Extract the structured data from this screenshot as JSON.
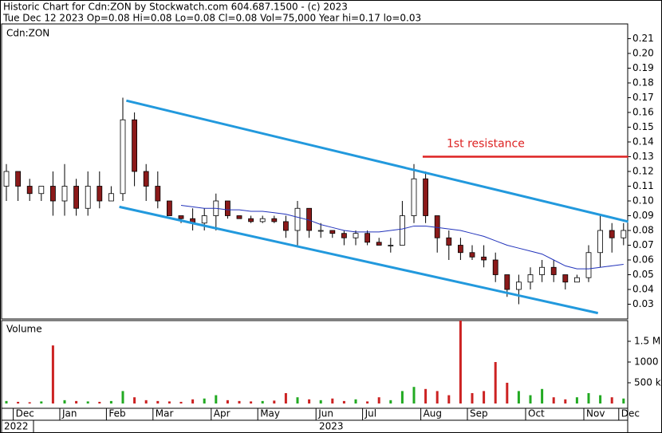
{
  "chart_data": {
    "type": "candlestick",
    "title": "Historic Chart for Cdn:ZON by Stockwatch.com 604.687.1500 - (c) 2023",
    "subtitle": "Tue Dec 12 2023  Op=0.08  Hi=0.08  Lo=0.08  Cl=0.08  Vol=75,000  Year hi=0.17  lo=0.03",
    "symbol_label": "Cdn:ZON",
    "volume_label": "Volume",
    "years": [
      "2022",
      "2023"
    ],
    "categories": [
      null,
      "Dec",
      null,
      null,
      null,
      "Jan",
      null,
      null,
      null,
      "Feb",
      null,
      null,
      null,
      "Mar",
      null,
      null,
      null,
      null,
      "Apr",
      null,
      null,
      null,
      "May",
      null,
      null,
      null,
      null,
      "Jun",
      null,
      null,
      null,
      "Jul",
      null,
      null,
      null,
      null,
      "Aug",
      null,
      null,
      null,
      "Sep",
      null,
      null,
      null,
      null,
      "Oct",
      null,
      null,
      null,
      null,
      "Nov",
      null,
      null,
      "Dec"
    ],
    "open": [
      0.11,
      0.12,
      0.11,
      0.105,
      0.11,
      0.1,
      0.11,
      0.095,
      0.11,
      0.1,
      0.105,
      0.155,
      0.12,
      0.11,
      0.1,
      0.09,
      0.088,
      0.085,
      0.09,
      0.1,
      0.09,
      0.088,
      0.086,
      0.088,
      0.086,
      0.08,
      0.095,
      0.08,
      0.08,
      0.078,
      0.075,
      0.078,
      0.072,
      0.07,
      0.07,
      0.09,
      0.115,
      0.09,
      0.075,
      0.07,
      0.065,
      0.062,
      0.06,
      0.05,
      0.04,
      0.045,
      0.05,
      0.055,
      0.05,
      0.045,
      0.048,
      0.065,
      0.08,
      0.075
    ],
    "high": [
      0.125,
      0.12,
      0.115,
      0.11,
      0.12,
      0.125,
      0.115,
      0.12,
      0.12,
      0.11,
      0.17,
      0.16,
      0.125,
      0.12,
      0.1,
      0.09,
      0.095,
      0.095,
      0.105,
      0.1,
      0.09,
      0.09,
      0.09,
      0.09,
      0.09,
      0.1,
      0.095,
      0.085,
      0.08,
      0.08,
      0.08,
      0.08,
      0.075,
      0.075,
      0.1,
      0.125,
      0.12,
      0.09,
      0.08,
      0.075,
      0.07,
      0.07,
      0.065,
      0.05,
      0.05,
      0.055,
      0.06,
      0.06,
      0.05,
      0.05,
      0.07,
      0.09,
      0.085,
      0.085
    ],
    "low": [
      0.1,
      0.1,
      0.1,
      0.1,
      0.09,
      0.09,
      0.09,
      0.09,
      0.095,
      0.1,
      0.1,
      0.11,
      0.1,
      0.095,
      0.09,
      0.085,
      0.08,
      0.08,
      0.08,
      0.088,
      0.088,
      0.085,
      0.085,
      0.085,
      0.075,
      0.07,
      0.075,
      0.075,
      0.075,
      0.07,
      0.07,
      0.07,
      0.07,
      0.065,
      0.07,
      0.085,
      0.085,
      0.065,
      0.06,
      0.06,
      0.06,
      0.055,
      0.045,
      0.035,
      0.03,
      0.04,
      0.045,
      0.045,
      0.04,
      0.045,
      0.045,
      0.055,
      0.065,
      0.07
    ],
    "close": [
      0.12,
      0.11,
      0.105,
      0.11,
      0.1,
      0.11,
      0.095,
      0.11,
      0.1,
      0.105,
      0.155,
      0.12,
      0.11,
      0.1,
      0.09,
      0.088,
      0.085,
      0.09,
      0.1,
      0.09,
      0.088,
      0.086,
      0.088,
      0.086,
      0.08,
      0.095,
      0.08,
      0.08,
      0.078,
      0.075,
      0.078,
      0.072,
      0.07,
      0.07,
      0.09,
      0.115,
      0.09,
      0.075,
      0.07,
      0.065,
      0.062,
      0.06,
      0.05,
      0.04,
      0.045,
      0.05,
      0.055,
      0.05,
      0.045,
      0.048,
      0.065,
      0.08,
      0.075,
      0.08
    ],
    "moving_average": {
      "color": "#2233bb",
      "values": [
        null,
        null,
        null,
        null,
        null,
        null,
        null,
        null,
        null,
        null,
        null,
        null,
        null,
        null,
        null,
        0.097,
        0.096,
        0.095,
        0.095,
        0.094,
        0.094,
        0.093,
        0.093,
        0.092,
        0.091,
        0.089,
        0.087,
        0.084,
        0.082,
        0.08,
        0.079,
        0.079,
        0.079,
        0.08,
        0.081,
        0.083,
        0.083,
        0.082,
        0.081,
        0.08,
        0.078,
        0.076,
        0.073,
        0.07,
        0.068,
        0.066,
        0.064,
        0.06,
        0.056,
        0.054,
        0.054,
        0.055,
        0.056,
        0.057
      ]
    },
    "volume": [
      60000,
      40000,
      30000,
      50000,
      1400000,
      80000,
      60000,
      50000,
      40000,
      60000,
      300000,
      150000,
      80000,
      60000,
      50000,
      40000,
      100000,
      120000,
      200000,
      80000,
      60000,
      50000,
      60000,
      70000,
      250000,
      150000,
      100000,
      80000,
      120000,
      60000,
      100000,
      50000,
      150000,
      80000,
      300000,
      400000,
      350000,
      300000,
      200000,
      2000000,
      250000,
      300000,
      1000000,
      500000,
      300000,
      200000,
      350000,
      150000,
      100000,
      150000,
      250000,
      200000,
      150000,
      120000
    ],
    "up_color": "#ffffff",
    "down_color": "#8b1a1a",
    "volume_up_color": "#22aa22",
    "volume_down_color": "#cc2222",
    "ylim": [
      0.02,
      0.22
    ],
    "yticks": [
      0.03,
      0.04,
      0.05,
      0.06,
      0.07,
      0.08,
      0.09,
      {
        "value": 0.1,
        "label": "0.10"
      },
      0.11,
      0.12,
      0.13,
      0.14,
      0.15,
      0.16,
      0.17,
      0.18,
      0.19,
      {
        "value": 0.2,
        "label": "0.20"
      },
      0.21
    ],
    "volume_ylim": [
      0,
      2000000
    ],
    "volume_yticks": [
      {
        "value": 500000,
        "label": "500 k"
      },
      {
        "value": 1000000,
        "label": "1000 k"
      },
      {
        "value": 1500000,
        "label": "1.5 M"
      }
    ],
    "trendlines": [
      {
        "x": [
          10.3,
          53.4
        ],
        "y": [
          0.168,
          0.086
        ],
        "color": "#2299dd"
      },
      {
        "x": [
          9.7,
          50.8
        ],
        "y": [
          0.096,
          0.024
        ],
        "color": "#2299dd"
      }
    ],
    "resistance": {
      "label": "1st resistance",
      "value": 0.13,
      "x": [
        35.75,
        53.4
      ],
      "color": "#dd2222"
    }
  }
}
